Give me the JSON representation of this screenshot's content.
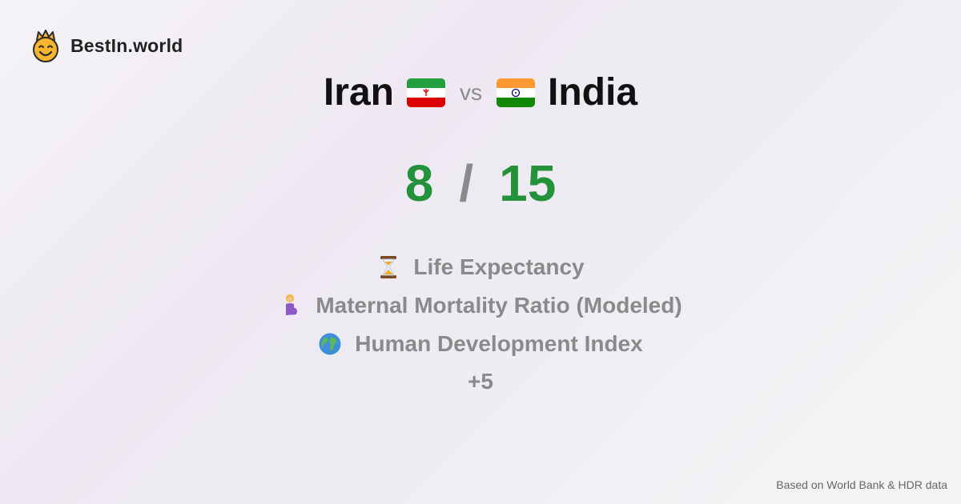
{
  "brand": {
    "name": "BestIn.world",
    "logo_icon": "crown-smiley-icon"
  },
  "comparison": {
    "left": {
      "name": "Iran",
      "flag_icon": "iran-flag-icon"
    },
    "vs_label": "vs",
    "right": {
      "name": "India",
      "flag_icon": "india-flag-icon"
    }
  },
  "score": {
    "left": "8",
    "separator": "/",
    "right": "15",
    "color": "#23923b"
  },
  "metrics": [
    {
      "icon": "hourglass-icon",
      "label": "Life Expectancy"
    },
    {
      "icon": "pregnant-woman-icon",
      "label": "Maternal Mortality Ratio (Modeled)"
    },
    {
      "icon": "globe-icon",
      "label": "Human Development Index"
    }
  ],
  "more_label": "+5",
  "footer": {
    "source": "Based on World Bank & HDR data"
  }
}
